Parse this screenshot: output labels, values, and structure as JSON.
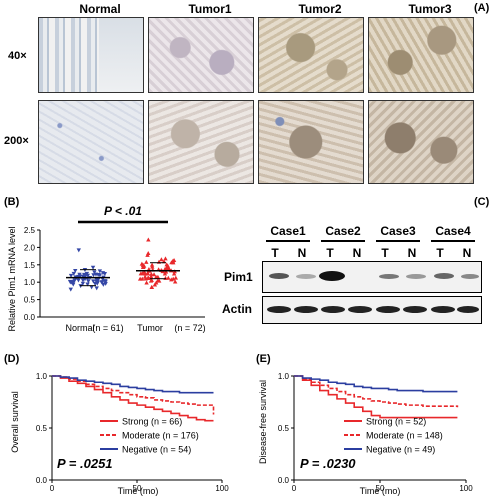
{
  "panelA": {
    "letter": "(A)",
    "columns": [
      "Normal",
      "Tumor1",
      "Tumor2",
      "Tumor3"
    ],
    "rows": [
      "40×",
      "200×"
    ]
  },
  "panelB": {
    "letter": "(B)",
    "stat": "P < .01",
    "ylabel": "Relative Pim1 mRNA level",
    "xlabels": [
      "Normal",
      "(n = 61)",
      "Tumor",
      "(n = 72)"
    ]
  },
  "panelC": {
    "letter": "(C)",
    "cases": [
      "Case1",
      "Case2",
      "Case3",
      "Case4"
    ],
    "lanes": [
      "T",
      "N",
      "T",
      "N",
      "T",
      "N",
      "T",
      "N"
    ],
    "proteins": [
      "Pim1",
      "Actin"
    ]
  },
  "panelD": {
    "letter": "(D)",
    "ylabel": "Overall survival",
    "xlabel": "Time (mo)",
    "pvalue": "P = .0251",
    "legend": [
      "Strong (n = 66)",
      "Moderate (n = 176)",
      "Negative (n = 54)"
    ]
  },
  "panelE": {
    "letter": "(E)",
    "ylabel": "Disease-free survival",
    "xlabel": "Time (mo)",
    "pvalue": "P = .0230",
    "legend": [
      "Strong (n = 52)",
      "Moderate (n = 148)",
      "Negative (n = 49)"
    ]
  },
  "colors": {
    "strong": "#e8282b",
    "moderate": "#e8282b",
    "negative": "#2b3ea0",
    "dots_normal": "#3547a6",
    "dots_tumor": "#e8282b"
  },
  "chart_data": [
    {
      "type": "scatter",
      "ylim": [
        0.0,
        2.5
      ],
      "yticks": [
        "0.0",
        "0.5",
        "1.0",
        "1.5",
        "2.0",
        "2.5"
      ],
      "categories": [
        "Normal",
        "Tumor"
      ],
      "series": [
        {
          "category": "Normal",
          "n": 61,
          "mean": 1.13
        },
        {
          "category": "Tumor",
          "n": 72,
          "mean": 1.33
        }
      ]
    },
    {
      "type": "line",
      "xlim": [
        0,
        100
      ],
      "ylim": [
        0.0,
        1.0
      ],
      "xticks": [
        "0",
        "50",
        "100"
      ],
      "yticks": [
        "0.0",
        "0.5",
        "1.0"
      ],
      "series": [
        {
          "key": "strong",
          "style": "solid",
          "points": [
            [
              0,
              1.0
            ],
            [
              5,
              0.98
            ],
            [
              10,
              0.95
            ],
            [
              15,
              0.93
            ],
            [
              20,
              0.9
            ],
            [
              25,
              0.87
            ],
            [
              30,
              0.84
            ],
            [
              35,
              0.8
            ],
            [
              40,
              0.77
            ],
            [
              45,
              0.74
            ],
            [
              50,
              0.72
            ],
            [
              55,
              0.7
            ],
            [
              60,
              0.68
            ],
            [
              65,
              0.66
            ],
            [
              70,
              0.64
            ],
            [
              75,
              0.62
            ],
            [
              80,
              0.6
            ],
            [
              85,
              0.58
            ],
            [
              90,
              0.57
            ],
            [
              95,
              0.57
            ]
          ]
        },
        {
          "key": "moderate",
          "style": "dashed",
          "points": [
            [
              0,
              1.0
            ],
            [
              5,
              0.99
            ],
            [
              10,
              0.97
            ],
            [
              15,
              0.95
            ],
            [
              20,
              0.92
            ],
            [
              25,
              0.9
            ],
            [
              30,
              0.88
            ],
            [
              35,
              0.86
            ],
            [
              40,
              0.84
            ],
            [
              45,
              0.82
            ],
            [
              50,
              0.8
            ],
            [
              55,
              0.79
            ],
            [
              60,
              0.77
            ],
            [
              65,
              0.76
            ],
            [
              70,
              0.75
            ],
            [
              75,
              0.74
            ],
            [
              80,
              0.73
            ],
            [
              85,
              0.72
            ],
            [
              90,
              0.72
            ],
            [
              95,
              0.63
            ]
          ]
        },
        {
          "key": "negative",
          "style": "solid",
          "points": [
            [
              0,
              1.0
            ],
            [
              5,
              0.99
            ],
            [
              10,
              0.98
            ],
            [
              15,
              0.96
            ],
            [
              20,
              0.95
            ],
            [
              25,
              0.94
            ],
            [
              30,
              0.93
            ],
            [
              35,
              0.92
            ],
            [
              40,
              0.9
            ],
            [
              45,
              0.89
            ],
            [
              50,
              0.88
            ],
            [
              55,
              0.87
            ],
            [
              60,
              0.86
            ],
            [
              65,
              0.85
            ],
            [
              70,
              0.85
            ],
            [
              75,
              0.84
            ],
            [
              80,
              0.84
            ],
            [
              85,
              0.84
            ],
            [
              90,
              0.84
            ],
            [
              95,
              0.84
            ]
          ]
        }
      ]
    },
    {
      "type": "line",
      "xlim": [
        0,
        100
      ],
      "ylim": [
        0.0,
        1.0
      ],
      "xticks": [
        "0",
        "50",
        "100"
      ],
      "yticks": [
        "0.0",
        "0.5",
        "1.0"
      ],
      "series": [
        {
          "key": "strong",
          "style": "solid",
          "points": [
            [
              0,
              1.0
            ],
            [
              5,
              0.96
            ],
            [
              10,
              0.91
            ],
            [
              15,
              0.86
            ],
            [
              20,
              0.82
            ],
            [
              25,
              0.78
            ],
            [
              30,
              0.74
            ],
            [
              35,
              0.7
            ],
            [
              40,
              0.66
            ],
            [
              45,
              0.62
            ],
            [
              50,
              0.6
            ],
            [
              55,
              0.6
            ],
            [
              60,
              0.6
            ],
            [
              65,
              0.6
            ],
            [
              70,
              0.6
            ],
            [
              75,
              0.6
            ],
            [
              80,
              0.6
            ],
            [
              85,
              0.6
            ],
            [
              90,
              0.6
            ],
            [
              95,
              0.6
            ]
          ]
        },
        {
          "key": "moderate",
          "style": "dashed",
          "points": [
            [
              0,
              1.0
            ],
            [
              5,
              0.97
            ],
            [
              10,
              0.94
            ],
            [
              15,
              0.91
            ],
            [
              20,
              0.88
            ],
            [
              25,
              0.85
            ],
            [
              30,
              0.82
            ],
            [
              35,
              0.8
            ],
            [
              40,
              0.78
            ],
            [
              45,
              0.76
            ],
            [
              50,
              0.75
            ],
            [
              55,
              0.74
            ],
            [
              60,
              0.73
            ],
            [
              65,
              0.72
            ],
            [
              70,
              0.72
            ],
            [
              75,
              0.71
            ],
            [
              80,
              0.71
            ],
            [
              85,
              0.71
            ],
            [
              90,
              0.71
            ],
            [
              95,
              0.7
            ]
          ]
        },
        {
          "key": "negative",
          "style": "solid",
          "points": [
            [
              0,
              1.0
            ],
            [
              5,
              0.98
            ],
            [
              10,
              0.97
            ],
            [
              15,
              0.96
            ],
            [
              20,
              0.94
            ],
            [
              25,
              0.93
            ],
            [
              30,
              0.92
            ],
            [
              35,
              0.9
            ],
            [
              40,
              0.89
            ],
            [
              45,
              0.88
            ],
            [
              50,
              0.88
            ],
            [
              55,
              0.87
            ],
            [
              60,
              0.86
            ],
            [
              65,
              0.86
            ],
            [
              70,
              0.86
            ],
            [
              75,
              0.85
            ],
            [
              80,
              0.85
            ],
            [
              85,
              0.85
            ],
            [
              90,
              0.85
            ],
            [
              95,
              0.85
            ]
          ]
        }
      ]
    }
  ]
}
